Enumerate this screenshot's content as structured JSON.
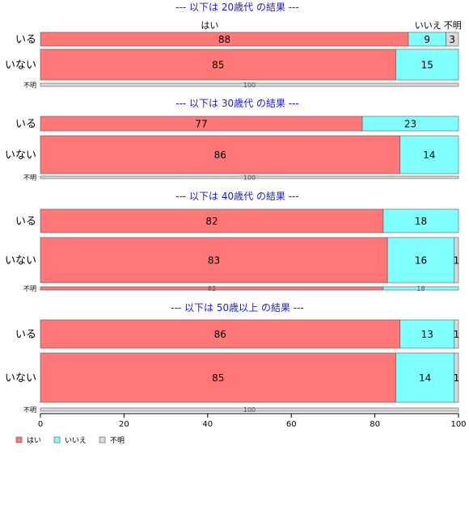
{
  "colors": {
    "yes": "#ff7777",
    "no": "#80ffff",
    "unknown": "#d9d9d9",
    "title": "#1a1ad6",
    "border": "#555555"
  },
  "chart_data": {
    "type": "bar",
    "orientation": "horizontal",
    "stacked": "percent",
    "xlim": [
      0,
      100
    ],
    "x_ticks": [
      "0",
      "20",
      "40",
      "60",
      "80",
      "100"
    ],
    "top_header_labels": [
      "はい",
      "いいえ",
      "不明"
    ],
    "legend": {
      "position": "bottom-left",
      "items": [
        {
          "label": "はい",
          "color": "#ff7777"
        },
        {
          "label": "いいえ",
          "color": "#80ffff"
        },
        {
          "label": "不明",
          "color": "#d9d9d9"
        }
      ]
    },
    "panels": [
      {
        "title": "--- 以下は 20歳代 の結果 ---",
        "rows": [
          {
            "label": "いる",
            "values": [
              88,
              9,
              3
            ]
          },
          {
            "label": "いない",
            "values": [
              85,
              15,
              0
            ]
          },
          {
            "label": "不明",
            "values": [
              0,
              0,
              100
            ]
          }
        ]
      },
      {
        "title": "--- 以下は 30歳代 の結果 ---",
        "rows": [
          {
            "label": "いる",
            "values": [
              77,
              23,
              0
            ]
          },
          {
            "label": "いない",
            "values": [
              86,
              14,
              0
            ]
          },
          {
            "label": "不明",
            "values": [
              0,
              0,
              100
            ]
          }
        ]
      },
      {
        "title": "--- 以下は 40歳代 の結果 ---",
        "rows": [
          {
            "label": "いる",
            "values": [
              82,
              18,
              0
            ]
          },
          {
            "label": "いない",
            "values": [
              83,
              16,
              1
            ]
          },
          {
            "label": "不明",
            "values": [
              82,
              18,
              0
            ]
          }
        ]
      },
      {
        "title": "--- 以下は 50歳以上 の結果 ---",
        "rows": [
          {
            "label": "いる",
            "values": [
              86,
              13,
              1
            ]
          },
          {
            "label": "いない",
            "values": [
              85,
              14,
              1
            ]
          },
          {
            "label": "不明",
            "values": [
              0,
              0,
              100
            ]
          }
        ]
      }
    ]
  }
}
